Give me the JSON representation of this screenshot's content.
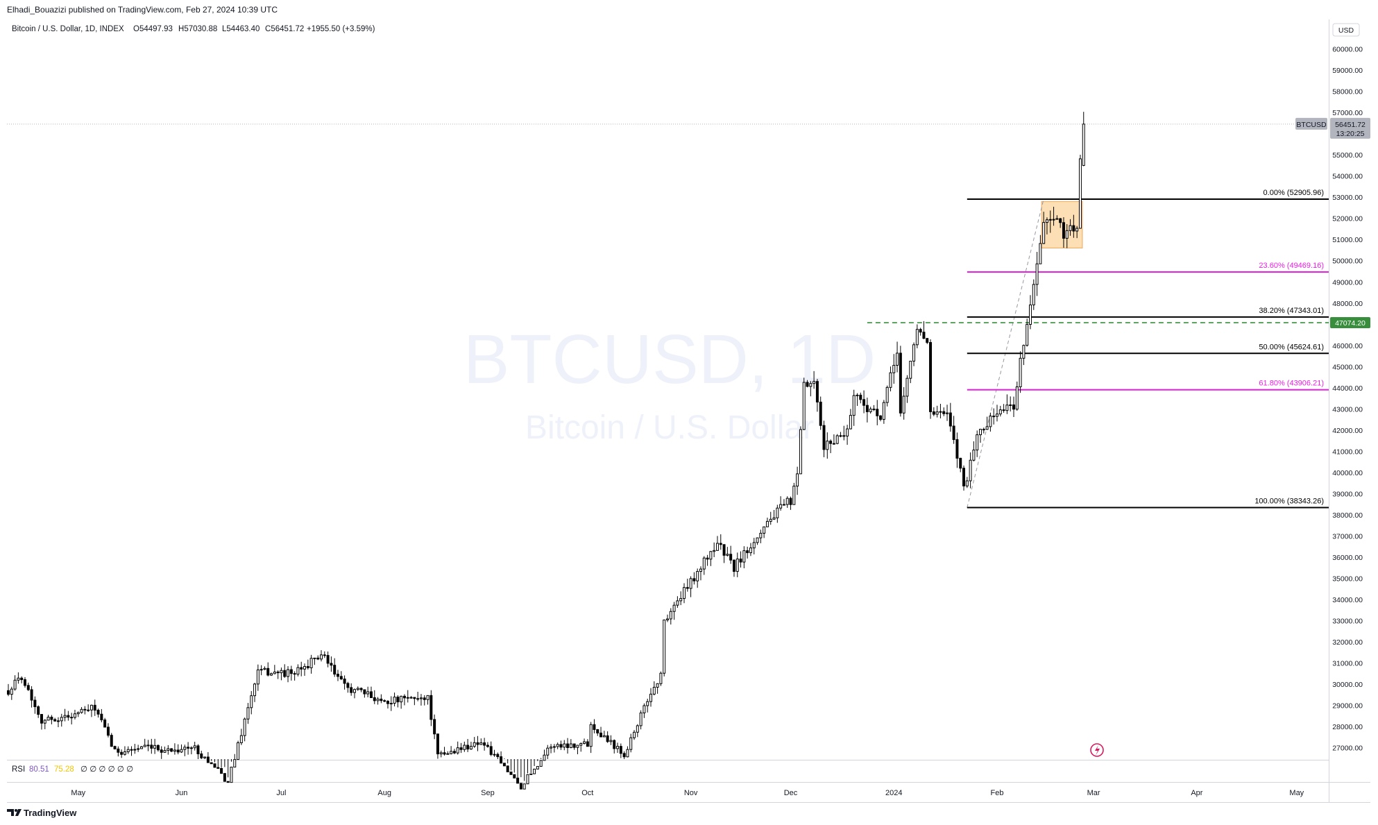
{
  "header": {
    "publisher": "Elhadi_Bouazizi published on TradingView.com, Feb 27, 2024 10:39 UTC",
    "symbol_desc": "Bitcoin / U.S. Dollar, 1D, INDEX",
    "ohlc": [
      {
        "key": "O",
        "value": "54497.93"
      },
      {
        "key": "H",
        "value": "57030.88"
      },
      {
        "key": "L",
        "value": "54463.40"
      },
      {
        "key": "C",
        "value": "56451.72"
      }
    ],
    "change": "+1955.50 (+3.59%)"
  },
  "watermark": {
    "title": "BTCUSD, 1D",
    "subtitle": "Bitcoin / U.S. Dollar"
  },
  "price_axis": {
    "currency": "USD"
  },
  "last_price": {
    "symbol": "BTCUSD",
    "price": "56451.72",
    "countdown": "13:20:25"
  },
  "hline_label": "47074.20",
  "rsi": {
    "name": "RSI",
    "v1": "80.51",
    "v2": "75.28"
  },
  "footer": {
    "brand": "TradingView"
  },
  "colors": {
    "candle": "#000000",
    "fib_black": "#000000",
    "fib_magenta": "#e91ee3",
    "green_line": "#388e3c",
    "box_fill": "#fcd9a8",
    "box_border": "#f0a75a",
    "last_price_bg": "#b2b5be",
    "watermark": "#eef1fa"
  },
  "chart_data": {
    "type": "candlestick",
    "symbol": "BTCUSD",
    "interval": "1D",
    "ylim": [
      26500,
      61000
    ],
    "y_ticks": [
      27000,
      28000,
      29000,
      30000,
      31000,
      32000,
      33000,
      34000,
      35000,
      36000,
      37000,
      38000,
      39000,
      40000,
      41000,
      42000,
      43000,
      44000,
      45000,
      46000,
      47000,
      48000,
      49000,
      50000,
      51000,
      52000,
      53000,
      54000,
      55000,
      56000,
      57000,
      58000,
      59000,
      60000
    ],
    "x_axis_labels": [
      {
        "label": "May",
        "date": "2023-05-01"
      },
      {
        "label": "Jun",
        "date": "2023-06-01"
      },
      {
        "label": "Jul",
        "date": "2023-07-01"
      },
      {
        "label": "Aug",
        "date": "2023-08-01"
      },
      {
        "label": "Sep",
        "date": "2023-09-01"
      },
      {
        "label": "Oct",
        "date": "2023-10-01"
      },
      {
        "label": "Nov",
        "date": "2023-11-01"
      },
      {
        "label": "Dec",
        "date": "2023-12-01"
      },
      {
        "label": "2024",
        "date": "2024-01-01"
      },
      {
        "label": "Feb",
        "date": "2024-02-01"
      },
      {
        "label": "Mar",
        "date": "2024-03-01"
      },
      {
        "label": "Apr",
        "date": "2024-04-01"
      },
      {
        "label": "May",
        "date": "2024-05-01"
      }
    ],
    "x_range": [
      "2023-04-10",
      "2024-05-10"
    ],
    "close_path": [
      [
        "2023-04-10",
        29700
      ],
      [
        "2023-04-14",
        30400
      ],
      [
        "2023-04-20",
        28300
      ],
      [
        "2023-04-26",
        28400
      ],
      [
        "2023-05-06",
        28900
      ],
      [
        "2023-05-12",
        26800
      ],
      [
        "2023-05-20",
        27000
      ],
      [
        "2023-05-28",
        26900
      ],
      [
        "2023-06-05",
        27000
      ],
      [
        "2023-06-15",
        25400
      ],
      [
        "2023-06-20",
        28300
      ],
      [
        "2023-06-24",
        30600
      ],
      [
        "2023-07-05",
        30500
      ],
      [
        "2023-07-13",
        31400
      ],
      [
        "2023-07-20",
        29900
      ],
      [
        "2023-08-01",
        29200
      ],
      [
        "2023-08-14",
        29400
      ],
      [
        "2023-08-17",
        26600
      ],
      [
        "2023-08-30",
        27300
      ],
      [
        "2023-09-11",
        25200
      ],
      [
        "2023-09-20",
        27100
      ],
      [
        "2023-10-01",
        27200
      ],
      [
        "2023-10-02",
        28100
      ],
      [
        "2023-10-12",
        26700
      ],
      [
        "2023-10-20",
        29600
      ],
      [
        "2023-10-23",
        30400
      ],
      [
        "2023-10-24",
        33000
      ],
      [
        "2023-10-31",
        34600
      ],
      [
        "2023-11-09",
        36700
      ],
      [
        "2023-11-14",
        35500
      ],
      [
        "2023-11-24",
        37700
      ],
      [
        "2023-12-01",
        38700
      ],
      [
        "2023-12-03",
        39700
      ],
      [
        "2023-12-05",
        44100
      ],
      [
        "2023-12-08",
        44100
      ],
      [
        "2023-12-11",
        41200
      ],
      [
        "2023-12-18",
        42000
      ],
      [
        "2023-12-20",
        43700
      ],
      [
        "2023-12-28",
        42500
      ],
      [
        "2024-01-02",
        45800
      ],
      [
        "2024-01-03",
        42800
      ],
      [
        "2024-01-08",
        46800
      ],
      [
        "2024-01-11",
        46300
      ],
      [
        "2024-01-12",
        42800
      ],
      [
        "2024-01-17",
        42700
      ],
      [
        "2024-01-22",
        39500
      ],
      [
        "2024-01-23",
        39800
      ],
      [
        "2024-01-26",
        41800
      ],
      [
        "2024-02-02",
        43000
      ],
      [
        "2024-02-06",
        43100
      ],
      [
        "2024-02-08",
        45300
      ],
      [
        "2024-02-10",
        47100
      ],
      [
        "2024-02-13",
        49700
      ],
      [
        "2024-02-15",
        51800
      ],
      [
        "2024-02-19",
        51800
      ],
      [
        "2024-02-21",
        51300
      ],
      [
        "2024-02-25",
        51700
      ],
      [
        "2024-02-26",
        54500
      ],
      [
        "2024-02-27",
        56451.72
      ]
    ],
    "current_bar": {
      "date": "2024-02-27",
      "open": 54497.93,
      "high": 57030.88,
      "low": 54463.4,
      "close": 56451.72,
      "change": 1955.5,
      "change_pct": 3.59
    },
    "last_price_line": 56451.72,
    "horizontal_line": {
      "price": 47074.2,
      "style": "dashed",
      "color": "#388e3c",
      "from": "2023-12-24"
    },
    "fib_retracement": {
      "from": {
        "date": "2024-01-23",
        "price": 38343.26
      },
      "to": {
        "date": "2024-02-15",
        "price": 52905.96
      },
      "levels": [
        {
          "label": "0.00% (52905.96)",
          "ratio": 0,
          "price": 52905.96,
          "color": "#000000"
        },
        {
          "label": "23.60% (49469.16)",
          "ratio": 0.236,
          "price": 49469.16,
          "color": "#e91ee3"
        },
        {
          "label": "38.20% (47343.01)",
          "ratio": 0.382,
          "price": 47343.01,
          "color": "#000000"
        },
        {
          "label": "50.00% (45624.61)",
          "ratio": 0.5,
          "price": 45624.61,
          "color": "#000000"
        },
        {
          "label": "61.80% (43906.21)",
          "ratio": 0.618,
          "price": 43906.21,
          "color": "#e91ee3"
        },
        {
          "label": "100.00% (38343.26)",
          "ratio": 1,
          "price": 38343.26,
          "color": "#000000"
        }
      ]
    },
    "consolidation_box": {
      "from": "2024-02-15",
      "to": "2024-02-26",
      "price_high": 52800,
      "price_low": 50600
    },
    "rsi": {
      "length_value": 80.51,
      "ma_value": 75.28
    }
  }
}
